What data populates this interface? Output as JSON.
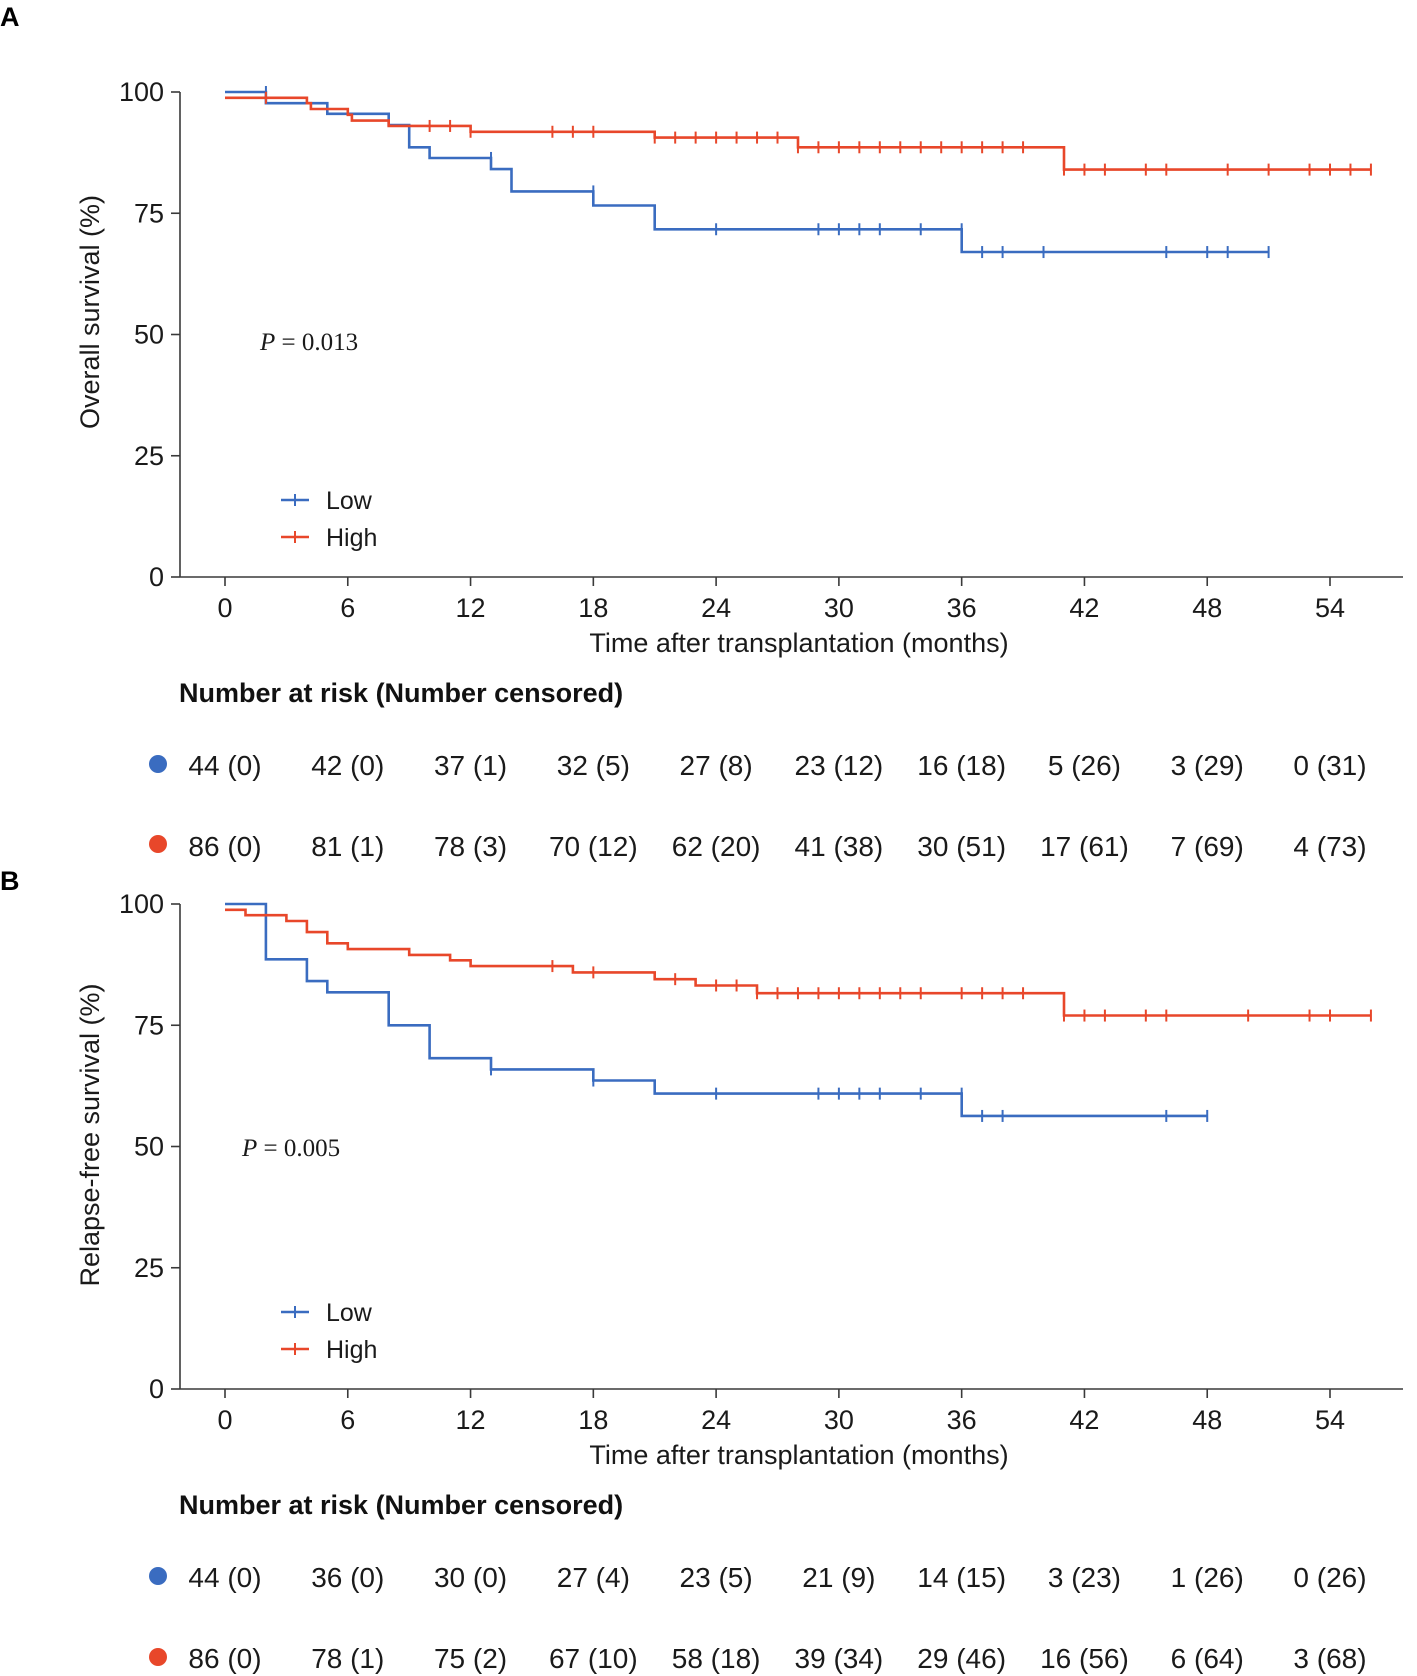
{
  "colors": {
    "low": "#3a6cc0",
    "high": "#e8472a",
    "axis": "#3a3a3a"
  },
  "chart_data": [
    {
      "panel": "A",
      "type": "line",
      "subtype": "kaplan-meier",
      "ylabel": "Overall survival (%)",
      "xlabel": "Time after transplantation (months)",
      "ylim": [
        0,
        100
      ],
      "yticks": [
        0,
        25,
        50,
        75,
        100
      ],
      "xlim": [
        -4,
        57
      ],
      "xticks": [
        0,
        6,
        12,
        18,
        24,
        30,
        36,
        42,
        48,
        54
      ],
      "p_label": "P",
      "p_text": " = 0.013",
      "legend": [
        "Low",
        "High"
      ],
      "series": [
        {
          "name": "Low",
          "color": "#3a6cc0",
          "steps": [
            [
              0,
              100
            ],
            [
              2,
              97.7
            ],
            [
              5,
              95.5
            ],
            [
              8,
              93.2
            ],
            [
              9,
              88.6
            ],
            [
              10,
              86.4
            ],
            [
              13,
              84.1
            ],
            [
              14,
              79.5
            ],
            [
              18,
              76.6
            ],
            [
              21,
              71.7
            ],
            [
              36,
              67.0
            ],
            [
              51,
              67.0
            ]
          ],
          "censors": [
            [
              2,
              100
            ],
            [
              13,
              86.4
            ],
            [
              18,
              79.5
            ],
            [
              24,
              71.7
            ],
            [
              29,
              71.7
            ],
            [
              30,
              71.7
            ],
            [
              31,
              71.7
            ],
            [
              32,
              71.7
            ],
            [
              34,
              71.7
            ],
            [
              36,
              71.7
            ],
            [
              37,
              67.0
            ],
            [
              38,
              67.0
            ],
            [
              40,
              67.0
            ],
            [
              46,
              67.0
            ],
            [
              48,
              67.0
            ],
            [
              49,
              67.0
            ],
            [
              51,
              67.0
            ]
          ]
        },
        {
          "name": "High",
          "color": "#e8472a",
          "steps": [
            [
              0,
              98.8
            ],
            [
              4,
              97.7
            ],
            [
              4.2,
              96.5
            ],
            [
              6,
              95.3
            ],
            [
              6.2,
              94.1
            ],
            [
              8,
              93.0
            ],
            [
              10,
              93.0
            ],
            [
              12,
              91.8
            ],
            [
              21,
              90.6
            ],
            [
              28,
              88.6
            ],
            [
              41,
              84.0
            ],
            [
              56,
              84.0
            ]
          ],
          "censors": [
            [
              2,
              98.8
            ],
            [
              10,
              93.0
            ],
            [
              11,
              93.0
            ],
            [
              12,
              91.8
            ],
            [
              16,
              91.8
            ],
            [
              17,
              91.8
            ],
            [
              18,
              91.8
            ],
            [
              21,
              90.6
            ],
            [
              22,
              90.6
            ],
            [
              23,
              90.6
            ],
            [
              24,
              90.6
            ],
            [
              25,
              90.6
            ],
            [
              26,
              90.6
            ],
            [
              27,
              90.6
            ],
            [
              28,
              88.6
            ],
            [
              29,
              88.6
            ],
            [
              30,
              88.6
            ],
            [
              31,
              88.6
            ],
            [
              32,
              88.6
            ],
            [
              33,
              88.6
            ],
            [
              34,
              88.6
            ],
            [
              35,
              88.6
            ],
            [
              36,
              88.6
            ],
            [
              37,
              88.6
            ],
            [
              38,
              88.6
            ],
            [
              39,
              88.6
            ],
            [
              41,
              84.0
            ],
            [
              42,
              84.0
            ],
            [
              43,
              84.0
            ],
            [
              45,
              84.0
            ],
            [
              46,
              84.0
            ],
            [
              49,
              84.0
            ],
            [
              51,
              84.0
            ],
            [
              53,
              84.0
            ],
            [
              54,
              84.0
            ],
            [
              55,
              84.0
            ],
            [
              56,
              84.0
            ]
          ]
        }
      ],
      "risk_title": "Number at risk (Number censored)",
      "risk_table": {
        "Low": [
          "44 (0)",
          "42 (0)",
          "37 (1)",
          "32 (5)",
          "27 (8)",
          "23 (12)",
          "16 (18)",
          "5 (26)",
          "3 (29)",
          "0 (31)"
        ],
        "High": [
          "86 (0)",
          "81 (1)",
          "78 (3)",
          "70 (12)",
          "62 (20)",
          "41 (38)",
          "30 (51)",
          "17 (61)",
          "7 (69)",
          "4 (73)"
        ]
      }
    },
    {
      "panel": "B",
      "type": "line",
      "subtype": "kaplan-meier",
      "ylabel": "Relapse-free survival (%)",
      "xlabel": "Time after transplantation (months)",
      "ylim": [
        0,
        100
      ],
      "yticks": [
        0,
        25,
        50,
        75,
        100
      ],
      "xlim": [
        -4,
        57
      ],
      "xticks": [
        0,
        6,
        12,
        18,
        24,
        30,
        36,
        42,
        48,
        54
      ],
      "p_label": "P",
      "p_text": " = 0.005",
      "legend": [
        "Low",
        "High"
      ],
      "series": [
        {
          "name": "Low",
          "color": "#3a6cc0",
          "steps": [
            [
              0,
              100
            ],
            [
              2,
              88.6
            ],
            [
              4,
              84.1
            ],
            [
              5,
              81.8
            ],
            [
              8,
              75.0
            ],
            [
              10,
              68.2
            ],
            [
              13,
              65.9
            ],
            [
              18,
              63.6
            ],
            [
              21,
              60.9
            ],
            [
              36,
              56.3
            ],
            [
              48,
              56.3
            ]
          ],
          "censors": [
            [
              13,
              65.9
            ],
            [
              18,
              63.6
            ],
            [
              24,
              60.9
            ],
            [
              29,
              60.9
            ],
            [
              30,
              60.9
            ],
            [
              31,
              60.9
            ],
            [
              32,
              60.9
            ],
            [
              34,
              60.9
            ],
            [
              36,
              60.9
            ],
            [
              37,
              56.3
            ],
            [
              38,
              56.3
            ],
            [
              46,
              56.3
            ],
            [
              48,
              56.3
            ]
          ]
        },
        {
          "name": "High",
          "color": "#e8472a",
          "steps": [
            [
              0,
              98.8
            ],
            [
              1,
              97.7
            ],
            [
              3,
              96.5
            ],
            [
              4,
              94.2
            ],
            [
              5,
              91.9
            ],
            [
              6,
              90.7
            ],
            [
              9,
              89.5
            ],
            [
              11,
              88.4
            ],
            [
              12,
              87.2
            ],
            [
              17,
              85.9
            ],
            [
              21,
              84.5
            ],
            [
              23,
              83.2
            ],
            [
              26,
              81.6
            ],
            [
              41,
              77.0
            ],
            [
              56,
              77.0
            ]
          ],
          "censors": [
            [
              16,
              87.2
            ],
            [
              18,
              85.9
            ],
            [
              22,
              84.5
            ],
            [
              24,
              83.2
            ],
            [
              25,
              83.2
            ],
            [
              26,
              81.6
            ],
            [
              27,
              81.6
            ],
            [
              28,
              81.6
            ],
            [
              29,
              81.6
            ],
            [
              30,
              81.6
            ],
            [
              31,
              81.6
            ],
            [
              32,
              81.6
            ],
            [
              33,
              81.6
            ],
            [
              34,
              81.6
            ],
            [
              36,
              81.6
            ],
            [
              37,
              81.6
            ],
            [
              38,
              81.6
            ],
            [
              39,
              81.6
            ],
            [
              41,
              77.0
            ],
            [
              42,
              77.0
            ],
            [
              43,
              77.0
            ],
            [
              45,
              77.0
            ],
            [
              46,
              77.0
            ],
            [
              50,
              77.0
            ],
            [
              53,
              77.0
            ],
            [
              54,
              77.0
            ],
            [
              56,
              77.0
            ]
          ]
        }
      ],
      "risk_title": "Number at risk (Number censored)",
      "risk_table": {
        "Low": [
          "44 (0)",
          "36 (0)",
          "30 (0)",
          "27 (4)",
          "23 (5)",
          "21 (9)",
          "14 (15)",
          "3 (23)",
          "1 (26)",
          "0 (26)"
        ],
        "High": [
          "86 (0)",
          "78 (1)",
          "75 (2)",
          "67 (10)",
          "58 (18)",
          "39 (34)",
          "29 (46)",
          "16 (56)",
          "6 (64)",
          "3 (68)"
        ]
      }
    }
  ]
}
